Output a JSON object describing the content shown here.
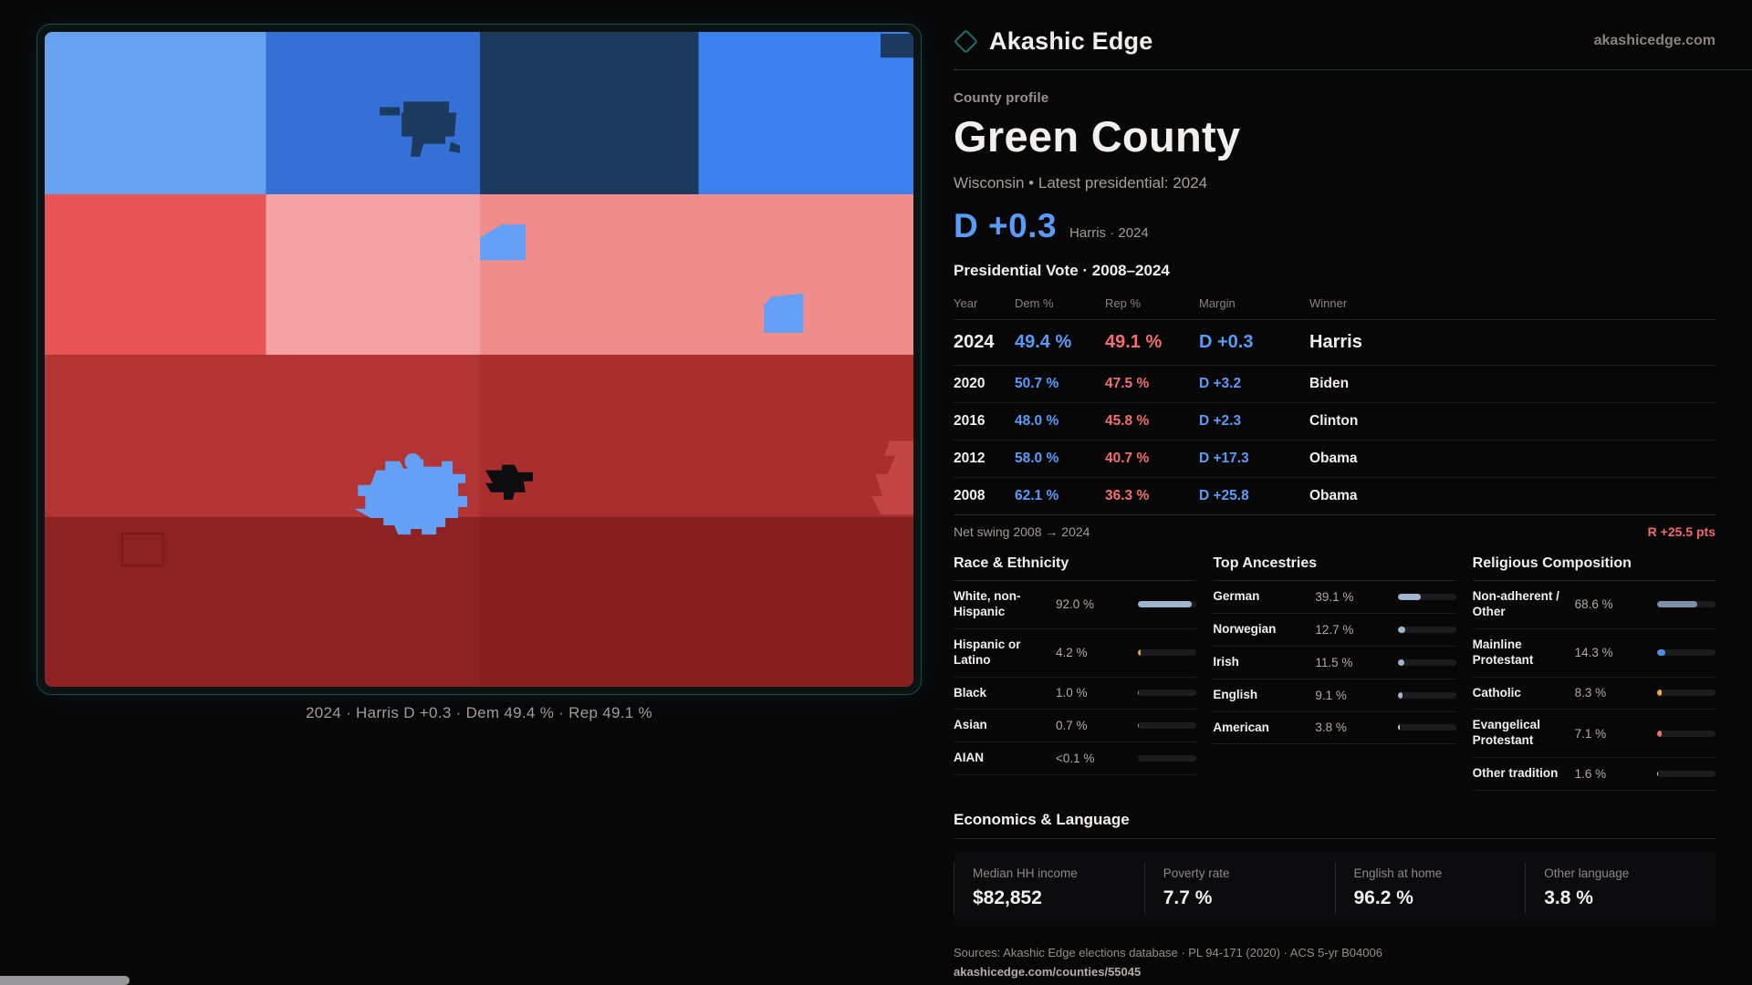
{
  "brand": {
    "name": "Akashic Edge",
    "site": "akashicedge.com"
  },
  "hero": {
    "eyebrow": "County profile",
    "title": "Green County",
    "subtitle": "Wisconsin • Latest presidential: 2024",
    "margin": "D +0.3",
    "margin_note": "Harris · 2024"
  },
  "table": {
    "title": "Presidential Vote · 2008–2024",
    "columns": [
      "Year",
      "Dem %",
      "Rep %",
      "Margin",
      "Winner"
    ],
    "rows": [
      {
        "year": "2024",
        "dem": "49.4 %",
        "rep": "49.1 %",
        "margin": "D +0.3",
        "winner": "Harris"
      },
      {
        "year": "2020",
        "dem": "50.7 %",
        "rep": "47.5 %",
        "margin": "D +3.2",
        "winner": "Biden"
      },
      {
        "year": "2016",
        "dem": "48.0 %",
        "rep": "45.8 %",
        "margin": "D +2.3",
        "winner": "Clinton"
      },
      {
        "year": "2012",
        "dem": "58.0 %",
        "rep": "40.7 %",
        "margin": "D +17.3",
        "winner": "Obama"
      },
      {
        "year": "2008",
        "dem": "62.1 %",
        "rep": "36.3 %",
        "margin": "D +25.8",
        "winner": "Obama"
      }
    ],
    "net_swing_label": "Net swing 2008 → 2024",
    "net_swing_value": "R +25.5 pts"
  },
  "race": {
    "title": "Race & Ethnicity",
    "rows": [
      {
        "label": "White, non-Hispanic",
        "value": "92.0 %",
        "pct": 92.0,
        "color": "#9fb6ce"
      },
      {
        "label": "Hispanic or Latino",
        "value": "4.2 %",
        "pct": 4.2,
        "color": "#e3a43c"
      },
      {
        "label": "Black",
        "value": "1.0 %",
        "pct": 1.0,
        "color": "#8f84f2"
      },
      {
        "label": "Asian",
        "value": "0.7 %",
        "pct": 0.7,
        "color": "#3fbfa6"
      },
      {
        "label": "AIAN",
        "value": "<0.1 %",
        "pct": 0,
        "color": "#9fb6ce"
      }
    ]
  },
  "ancestries": {
    "title": "Top Ancestries",
    "rows": [
      {
        "label": "German",
        "value": "39.1 %",
        "pct": 39.1,
        "color": "#9fb6ce"
      },
      {
        "label": "Norwegian",
        "value": "12.7 %",
        "pct": 12.7,
        "color": "#9fb6ce"
      },
      {
        "label": "Irish",
        "value": "11.5 %",
        "pct": 11.5,
        "color": "#9fb6ce"
      },
      {
        "label": "English",
        "value": "9.1 %",
        "pct": 9.1,
        "color": "#9fb6ce"
      },
      {
        "label": "American",
        "value": "3.8 %",
        "pct": 3.8,
        "color": "#c8cdd4"
      }
    ]
  },
  "religion": {
    "title": "Religious Composition",
    "rows": [
      {
        "label": "Non-adherent / Other",
        "value": "68.6 %",
        "pct": 68.6,
        "color": "#7e90a9"
      },
      {
        "label": "Mainline Protestant",
        "value": "14.3 %",
        "pct": 14.3,
        "color": "#4f8fe8"
      },
      {
        "label": "Catholic",
        "value": "8.3 %",
        "pct": 8.3,
        "color": "#e8b33c"
      },
      {
        "label": "Evangelical Protestant",
        "value": "7.1 %",
        "pct": 7.1,
        "color": "#e87070"
      },
      {
        "label": "Other tradition",
        "value": "1.6 %",
        "pct": 1.6,
        "color": "#e6e6e6"
      }
    ]
  },
  "economics": {
    "title": "Economics & Language",
    "stats": [
      {
        "label": "Median HH income",
        "value": "$82,852"
      },
      {
        "label": "Poverty rate",
        "value": "7.7 %"
      },
      {
        "label": "English at home",
        "value": "96.2 %"
      },
      {
        "label": "Other language",
        "value": "3.8 %"
      }
    ]
  },
  "footer": {
    "sources": "Sources: Akashic Edge elections database · PL 94-171 (2020) · ACS 5-yr B04006",
    "permalink": "akashicedge.com/counties/55045"
  },
  "map": {
    "caption": "2024 · Harris D +0.3 · Dem 49.4 % · Rep 49.1 %",
    "palette": {
      "r1a": "#68a2f3",
      "r1b": "#3470d6",
      "r1c": "#1c3a5e",
      "r1d": "#3b80ef",
      "navy": "#1c3a5e",
      "r2a": "#e85456",
      "r2b": "#f4a2a2",
      "r2c": "#ef8c8c",
      "r3a": "#b33434",
      "r3b": "#aa2e2e",
      "r4a": "#8d2222",
      "r4b": "#861f1f",
      "city": "#64a0f5",
      "black_area": "#0d0d10",
      "edge_red": "#c24444",
      "outline_red": "#7a1b1b"
    }
  }
}
